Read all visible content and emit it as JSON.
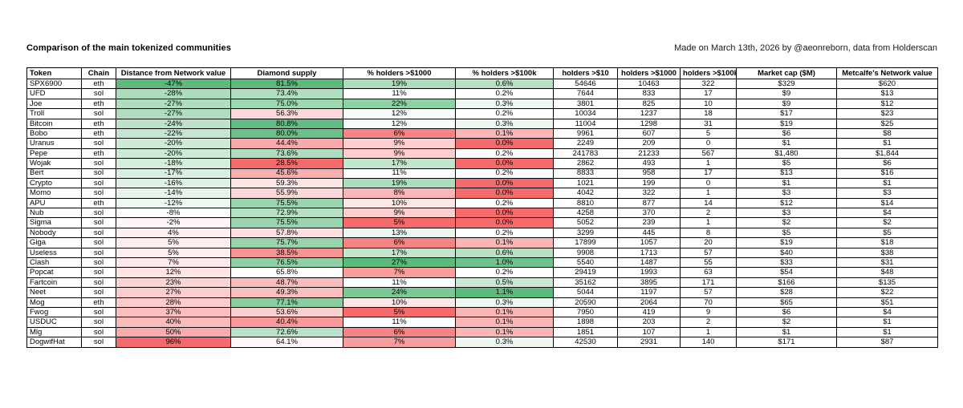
{
  "page": {
    "title": "Comparison of the main tokenized communities",
    "credit": "Made on March 13th, 2026 by @aeonreborn, data from Holderscan"
  },
  "colors": {
    "scale_green": "#5cba7c",
    "scale_red": "#f56b6b",
    "scale_neutral": "#ffffff",
    "grid": "#000000",
    "text": "#000000",
    "background": "#ffffff"
  },
  "chart_data": {
    "type": "table",
    "title": "Comparison of the main tokenized communities",
    "legend": "cell background is a red-white-green conditional color scale per column",
    "columns": [
      {
        "key": "token",
        "label": "Token",
        "align": "left"
      },
      {
        "key": "chain",
        "label": "Chain",
        "align": "center"
      },
      {
        "key": "distance",
        "label": "Distance from Network value",
        "align": "center",
        "scale": {
          "min": -47,
          "mid": -8,
          "max": 96,
          "low": "scale_green",
          "high": "scale_red"
        }
      },
      {
        "key": "diamond",
        "label": "Diamond supply",
        "align": "center",
        "scale": {
          "min": 28.5,
          "mid": 65.8,
          "max": 81.5,
          "low": "scale_red",
          "high": "scale_green"
        }
      },
      {
        "key": "pct1000",
        "label": "% holders >$1000",
        "align": "center",
        "scale": {
          "min": 5,
          "mid": 11,
          "max": 27,
          "low": "scale_red",
          "high": "scale_green"
        }
      },
      {
        "key": "pct100k",
        "label": "% holders >$100k",
        "align": "center",
        "scale": {
          "min": 0,
          "mid": 0.2,
          "max": 1.1,
          "low": "scale_red",
          "high": "scale_green"
        }
      },
      {
        "key": "h10",
        "label": "holders >$10",
        "align": "center"
      },
      {
        "key": "h1000",
        "label": "holders >$1000",
        "align": "center"
      },
      {
        "key": "h100k",
        "label": "holders >$100k",
        "align": "center"
      },
      {
        "key": "mcap",
        "label": "Market cap ($M)",
        "align": "center"
      },
      {
        "key": "metcalfe",
        "label": "Metcalfe's Network value",
        "align": "center"
      }
    ],
    "rows": [
      [
        "SPX6900",
        "eth",
        "-47%",
        "81.5%",
        "19%",
        "0.6%",
        "54646",
        "10463",
        "322",
        "$329",
        "$620"
      ],
      [
        "UFD",
        "sol",
        "-28%",
        "73.4%",
        "11%",
        "0.2%",
        "7644",
        "833",
        "17",
        "$9",
        "$13"
      ],
      [
        "Joe",
        "eth",
        "-27%",
        "75.0%",
        "22%",
        "0.3%",
        "3801",
        "825",
        "10",
        "$9",
        "$12"
      ],
      [
        "Troll",
        "sol",
        "-27%",
        "56.3%",
        "12%",
        "0.2%",
        "10034",
        "1237",
        "18",
        "$17",
        "$23"
      ],
      [
        "Bitcoin",
        "eth",
        "-24%",
        "80.8%",
        "12%",
        "0.3%",
        "11004",
        "1298",
        "31",
        "$19",
        "$25"
      ],
      [
        "Bobo",
        "eth",
        "-22%",
        "80.0%",
        "6%",
        "0.1%",
        "9961",
        "607",
        "5",
        "$6",
        "$8"
      ],
      [
        "Uranus",
        "sol",
        "-20%",
        "44.4%",
        "9%",
        "0.0%",
        "2249",
        "209",
        "0",
        "$1",
        "$1"
      ],
      [
        "Pepe",
        "eth",
        "-20%",
        "73.6%",
        "9%",
        "0.2%",
        "241783",
        "21233",
        "567",
        "$1,480",
        "$1,844"
      ],
      [
        "Wojak",
        "sol",
        "-18%",
        "28.5%",
        "17%",
        "0.0%",
        "2862",
        "493",
        "1",
        "$5",
        "$6"
      ],
      [
        "Bert",
        "sol",
        "-17%",
        "45.6%",
        "11%",
        "0.2%",
        "8833",
        "958",
        "17",
        "$13",
        "$16"
      ],
      [
        "Crypto",
        "sol",
        "-16%",
        "59.3%",
        "19%",
        "0.0%",
        "1021",
        "199",
        "0",
        "$1",
        "$1"
      ],
      [
        "Momo",
        "sol",
        "-14%",
        "55.9%",
        "8%",
        "0.0%",
        "4042",
        "322",
        "1",
        "$3",
        "$3"
      ],
      [
        "APU",
        "eth",
        "-12%",
        "75.5%",
        "10%",
        "0.2%",
        "8810",
        "877",
        "14",
        "$12",
        "$14"
      ],
      [
        "Nub",
        "sol",
        "-8%",
        "72.9%",
        "9%",
        "0.0%",
        "4258",
        "370",
        "2",
        "$3",
        "$4"
      ],
      [
        "Sigma",
        "sol",
        "-2%",
        "75.5%",
        "5%",
        "0.0%",
        "5052",
        "239",
        "1",
        "$2",
        "$2"
      ],
      [
        "Nobody",
        "sol",
        "4%",
        "57.8%",
        "13%",
        "0.2%",
        "3299",
        "445",
        "8",
        "$5",
        "$5"
      ],
      [
        "Giga",
        "sol",
        "5%",
        "75.7%",
        "6%",
        "0.1%",
        "17899",
        "1057",
        "20",
        "$19",
        "$18"
      ],
      [
        "Useless",
        "sol",
        "5%",
        "38.5%",
        "17%",
        "0.6%",
        "9908",
        "1713",
        "57",
        "$40",
        "$38"
      ],
      [
        "Clash",
        "sol",
        "7%",
        "76.5%",
        "27%",
        "1.0%",
        "5540",
        "1487",
        "55",
        "$33",
        "$31"
      ],
      [
        "Popcat",
        "sol",
        "12%",
        "65.8%",
        "7%",
        "0.2%",
        "29419",
        "1993",
        "63",
        "$54",
        "$48"
      ],
      [
        "Fartcoin",
        "sol",
        "23%",
        "48.7%",
        "11%",
        "0.5%",
        "35162",
        "3895",
        "171",
        "$166",
        "$135"
      ],
      [
        "Neet",
        "sol",
        "27%",
        "49.3%",
        "24%",
        "1.1%",
        "5044",
        "1197",
        "57",
        "$28",
        "$22"
      ],
      [
        "Mog",
        "eth",
        "28%",
        "77.1%",
        "10%",
        "0.3%",
        "20590",
        "2064",
        "70",
        "$65",
        "$51"
      ],
      [
        "Fwog",
        "sol",
        "37%",
        "53.6%",
        "5%",
        "0.1%",
        "7950",
        "419",
        "9",
        "$6",
        "$4"
      ],
      [
        "USDUC",
        "sol",
        "40%",
        "40.4%",
        "11%",
        "0.1%",
        "1898",
        "203",
        "2",
        "$2",
        "$1"
      ],
      [
        "Mlg",
        "sol",
        "50%",
        "72.6%",
        "6%",
        "0.1%",
        "1851",
        "107",
        "1",
        "$1",
        "$1"
      ],
      [
        "DogwifHat",
        "sol",
        "96%",
        "64.1%",
        "7%",
        "0.3%",
        "42530",
        "2931",
        "140",
        "$171",
        "$87"
      ]
    ]
  }
}
